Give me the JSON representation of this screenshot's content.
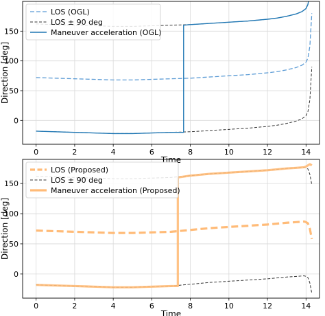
{
  "chart_data": [
    {
      "type": "line",
      "title": "",
      "xlabel": "Time",
      "ylabel": "Direction [deg]",
      "xlim": [
        -0.7,
        14.7
      ],
      "ylim": [
        -40,
        200
      ],
      "xticks": [
        0,
        2,
        4,
        6,
        8,
        10,
        12,
        14
      ],
      "yticks": [
        0,
        50,
        100,
        150
      ],
      "grid": true,
      "legend": "top-left",
      "series": [
        {
          "name": "LOS (OGL)",
          "color": "#5b9bd5",
          "style": "dashed",
          "x": [
            0,
            1,
            2,
            3,
            4,
            5,
            6,
            7,
            8,
            9,
            10,
            11,
            12,
            12.5,
            13,
            13.5,
            13.8,
            14.0,
            14.1,
            14.2,
            14.3
          ],
          "y": [
            72,
            71,
            70,
            69,
            68,
            68,
            69,
            70,
            71,
            73,
            75,
            77,
            80,
            82,
            85,
            89,
            93,
            98,
            105,
            125,
            180
          ]
        },
        {
          "name": "LOS ± 90 deg",
          "color": "#333333",
          "style": "dashed",
          "x": [
            0,
            1,
            2,
            3,
            4,
            5,
            6,
            7,
            8,
            9,
            10,
            11,
            12,
            12.5,
            13,
            13.5,
            13.8,
            14.0,
            14.1,
            14.2,
            14.3
          ],
          "y": [
            162,
            161,
            160,
            159,
            158,
            158,
            159,
            160,
            161,
            163,
            165,
            167,
            170,
            172,
            175,
            179,
            183,
            188,
            195,
            215,
            250
          ]
        },
        {
          "name": "",
          "color": "#333333",
          "style": "dashed",
          "x": [
            0,
            1,
            2,
            3,
            4,
            5,
            6,
            7,
            8,
            9,
            10,
            11,
            12,
            12.5,
            13,
            13.5,
            13.8,
            14.0,
            14.1,
            14.2,
            14.3
          ],
          "y": [
            -18,
            -19,
            -20,
            -21,
            -22,
            -22,
            -21,
            -20,
            -19,
            -17,
            -15,
            -13,
            -10,
            -8,
            -5,
            -1,
            3,
            8,
            15,
            35,
            90
          ]
        },
        {
          "name": "Maneuver acceleration (OGL)",
          "color": "#1f77b4",
          "style": "solid",
          "x": [
            0,
            1,
            2,
            3,
            4,
            5,
            6,
            7,
            7.65,
            7.65,
            8,
            9,
            10,
            11,
            12,
            12.5,
            13,
            13.5,
            13.8,
            14.0,
            14.1,
            14.2
          ],
          "y": [
            -18,
            -19,
            -20,
            -21,
            -22,
            -22,
            -21,
            -20,
            -20,
            160,
            161,
            163,
            165,
            167,
            170,
            172,
            175,
            179,
            183,
            188,
            195,
            215
          ]
        }
      ]
    },
    {
      "type": "line",
      "title": "",
      "xlabel": "Time",
      "ylabel": "Direction [deg]",
      "xlim": [
        -0.7,
        14.7
      ],
      "ylim": [
        -40,
        190
      ],
      "xticks": [
        0,
        2,
        4,
        6,
        8,
        10,
        12,
        14
      ],
      "yticks": [
        0,
        50,
        100,
        150
      ],
      "grid": true,
      "legend": "top-left",
      "series": [
        {
          "name": "LOS (Proposed)",
          "color": "#ffbb78",
          "style": "dashed",
          "x": [
            0,
            1,
            2,
            3,
            4,
            5,
            6,
            7,
            8,
            9,
            10,
            11,
            12,
            13,
            13.5,
            13.9,
            14.0,
            14.1,
            14.2,
            14.3
          ],
          "y": [
            72,
            71,
            70,
            69,
            68,
            68,
            69,
            70,
            73,
            76,
            78,
            80,
            82,
            85,
            86,
            87,
            86,
            84,
            75,
            58
          ]
        },
        {
          "name": "LOS ± 90 deg",
          "color": "#333333",
          "style": "dashed",
          "x": [
            0,
            1,
            2,
            3,
            4,
            5,
            6,
            7,
            8,
            9,
            10,
            11,
            12,
            13,
            13.5,
            13.9,
            14.0,
            14.1,
            14.2,
            14.3
          ],
          "y": [
            162,
            161,
            160,
            159,
            158,
            158,
            159,
            160,
            163,
            166,
            168,
            170,
            172,
            175,
            176,
            177,
            176,
            174,
            165,
            148
          ]
        },
        {
          "name": "",
          "color": "#333333",
          "style": "dashed",
          "x": [
            0,
            1,
            2,
            3,
            4,
            5,
            6,
            7,
            8,
            9,
            10,
            11,
            12,
            13,
            13.5,
            13.9,
            14.0,
            14.1,
            14.2,
            14.3
          ],
          "y": [
            -18,
            -19,
            -20,
            -21,
            -22,
            -22,
            -21,
            -20,
            -17,
            -14,
            -12,
            -10,
            -8,
            -5,
            -4,
            -3,
            -4,
            -6,
            -15,
            -32
          ]
        },
        {
          "name": "Maneuver acceleration (Proposed)",
          "color": "#ffbb78",
          "style": "solid",
          "x": [
            0,
            1,
            2,
            3,
            4,
            5,
            6,
            7,
            7.35,
            7.35,
            8,
            9,
            10,
            11,
            12,
            13,
            13.5,
            13.9,
            14.0,
            14.1,
            14.2,
            14.3
          ],
          "y": [
            -18,
            -19,
            -20,
            -21,
            -22,
            -22,
            -21,
            -20,
            -20,
            160,
            163,
            166,
            168,
            170,
            172,
            175,
            176,
            177,
            178,
            180,
            182,
            180
          ]
        }
      ]
    }
  ]
}
